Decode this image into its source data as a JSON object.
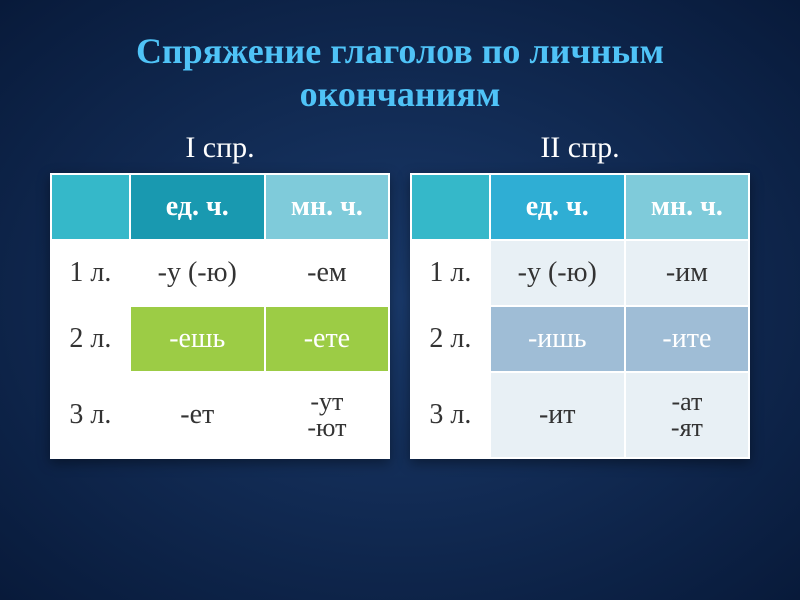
{
  "title": "Спряжение глаголов по личным окончаниям",
  "tables": [
    {
      "label": "I спр.",
      "header": {
        "ed": "ед. ч.",
        "mn": "мн. ч."
      },
      "colors": {
        "corner_bg": "#35b8c9",
        "ed_bg": "#1999b0",
        "mn_bg": "#7fcbda",
        "row_odd_bg": "#ffffff",
        "row_even_bg": "#9ccc45",
        "text_light": "#ffffff",
        "text_dark": "#333333"
      },
      "rows": [
        {
          "label": "1 л.",
          "ed": "-у (-ю)",
          "mn": "-ем"
        },
        {
          "label": "2 л.",
          "ed": "-ешь",
          "mn": "-ете"
        },
        {
          "label": "3 л.",
          "ed": "-ет",
          "mn": "-ут\n-ют"
        }
      ]
    },
    {
      "label": "II спр.",
      "header": {
        "ed": "ед. ч.",
        "mn": "мн. ч."
      },
      "colors": {
        "corner_bg": "#35b8c9",
        "ed_bg": "#2faed4",
        "mn_bg": "#7fcbda",
        "row_odd_bg": "#e8f0f5",
        "row_even_bg": "#9fbdd6",
        "text_light": "#ffffff",
        "text_dark": "#333333"
      },
      "rows": [
        {
          "label": "1 л.",
          "ed": "-у (-ю)",
          "mn": "-им"
        },
        {
          "label": "2 л.",
          "ed": "-ишь",
          "mn": "-ите"
        },
        {
          "label": "3 л.",
          "ed": "-ит",
          "mn": "-ат\n-ят"
        }
      ]
    }
  ]
}
